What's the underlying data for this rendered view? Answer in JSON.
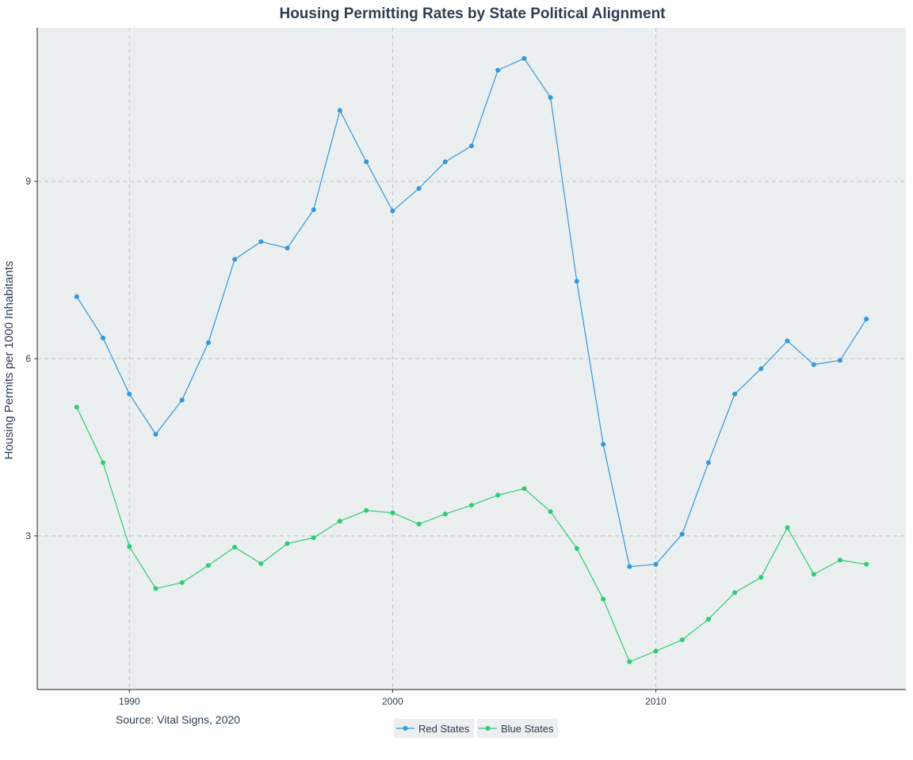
{
  "chart_data": {
    "type": "line",
    "title": "Housing Permitting Rates by State Political Alignment",
    "xlabel": "",
    "ylabel": "Housing Permits per 1000 Inhabitants",
    "caption": "Source: Vital Signs, 2020",
    "xlim": [
      1986.5,
      2019.5
    ],
    "ylim": [
      0.4,
      11.6
    ],
    "x_ticks": [
      1990,
      2000,
      2010
    ],
    "y_ticks": [
      3,
      6,
      9
    ],
    "grid": true,
    "legend_position": "bottom",
    "x": [
      1988,
      1989,
      1990,
      1991,
      1992,
      1993,
      1994,
      1995,
      1996,
      1997,
      1998,
      1999,
      2000,
      2001,
      2002,
      2003,
      2004,
      2005,
      2006,
      2007,
      2008,
      2009,
      2010,
      2011,
      2012,
      2013,
      2014,
      2015,
      2016,
      2017,
      2018
    ],
    "series": [
      {
        "name": "Red States",
        "color": "#3498db",
        "values": [
          7.05,
          6.35,
          5.4,
          4.72,
          5.3,
          6.27,
          7.68,
          7.98,
          7.87,
          8.52,
          10.2,
          9.33,
          8.5,
          8.88,
          9.33,
          9.6,
          10.88,
          11.08,
          10.42,
          7.31,
          4.55,
          2.48,
          2.52,
          3.03,
          4.24,
          5.4,
          5.83,
          6.3,
          5.9,
          5.97,
          6.67
        ]
      },
      {
        "name": "Blue States",
        "color": "#2ecc71",
        "values": [
          5.18,
          4.24,
          2.82,
          2.11,
          2.21,
          2.5,
          2.81,
          2.53,
          2.87,
          2.97,
          3.25,
          3.43,
          3.39,
          3.2,
          3.37,
          3.52,
          3.69,
          3.8,
          3.41,
          2.79,
          1.93,
          0.87,
          1.05,
          1.24,
          1.59,
          2.04,
          2.3,
          3.14,
          2.35,
          2.59,
          2.52
        ]
      }
    ]
  }
}
